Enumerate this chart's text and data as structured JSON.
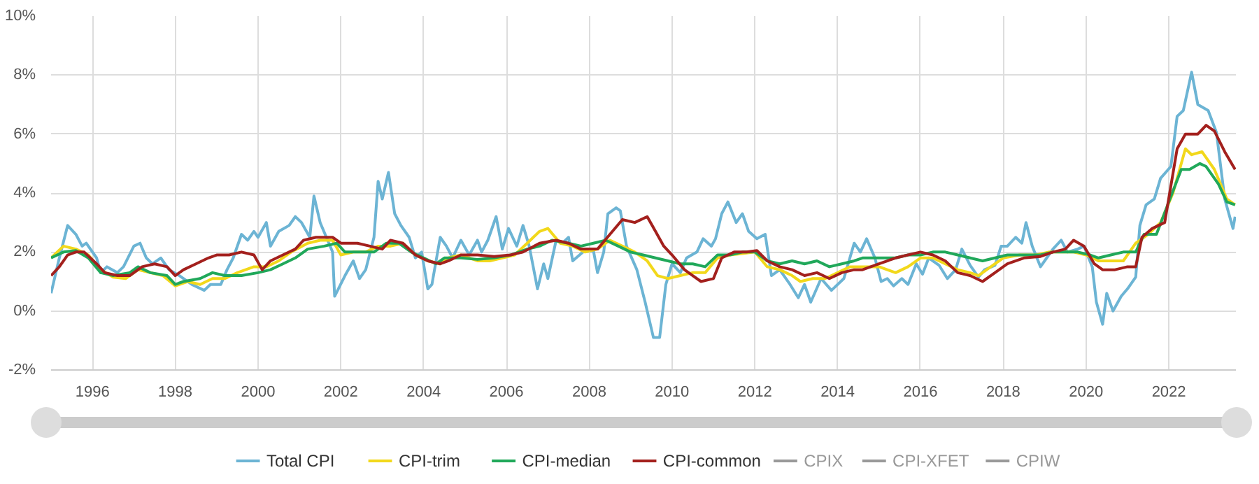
{
  "chart_data": {
    "type": "line",
    "xlim": [
      1995.0,
      2023.62
    ],
    "ylim": [
      -2,
      10
    ],
    "xticks": [
      1996,
      1998,
      2000,
      2002,
      2004,
      2006,
      2008,
      2010,
      2012,
      2014,
      2016,
      2018,
      2020,
      2022
    ],
    "yticks": [
      {
        "value": -2,
        "label": "-2%"
      },
      {
        "value": 0,
        "label": "0%"
      },
      {
        "value": 2,
        "label": "2%"
      },
      {
        "value": 4,
        "label": "4%"
      },
      {
        "value": 6,
        "label": "6%"
      },
      {
        "value": 8,
        "label": "8%"
      },
      {
        "value": 10,
        "label": "10%"
      }
    ],
    "grid": true,
    "legend": "bottom",
    "marker": "none",
    "line_style": "solid",
    "series": [
      {
        "name": "Total CPI",
        "color": "#6cb4d4",
        "x": [
          1995.0,
          1995.2,
          1995.4,
          1995.6,
          1995.75,
          1995.85,
          1996.1,
          1996.2,
          1996.35,
          1996.6,
          1996.75,
          1997.0,
          1997.15,
          1997.3,
          1997.45,
          1997.65,
          1997.85,
          1998.1,
          1998.4,
          1998.7,
          1998.85,
          1999.1,
          1999.25,
          1999.4,
          1999.6,
          1999.75,
          1999.9,
          2000.0,
          2000.2,
          2000.3,
          2000.5,
          2000.75,
          2000.9,
          2001.05,
          2001.25,
          2001.35,
          2001.5,
          2001.65,
          2001.8,
          2001.85,
          2002.1,
          2002.3,
          2002.45,
          2002.6,
          2002.8,
          2002.9,
          2003.0,
          2003.15,
          2003.3,
          2003.45,
          2003.65,
          2003.8,
          2003.95,
          2004.1,
          2004.2,
          2004.4,
          2004.55,
          2004.7,
          2004.9,
          2005.1,
          2005.3,
          2005.4,
          2005.55,
          2005.75,
          2005.9,
          2006.05,
          2006.25,
          2006.4,
          2006.55,
          2006.75,
          2006.9,
          2007.0,
          2007.2,
          2007.35,
          2007.5,
          2007.6,
          2007.85,
          2008.1,
          2008.2,
          2008.35,
          2008.45,
          2008.65,
          2008.75,
          2008.9,
          2009.15,
          2009.35,
          2009.55,
          2009.7,
          2009.85,
          2010.0,
          2010.2,
          2010.35,
          2010.6,
          2010.75,
          2010.95,
          2011.05,
          2011.2,
          2011.35,
          2011.55,
          2011.7,
          2011.85,
          2012.05,
          2012.25,
          2012.4,
          2012.6,
          2012.85,
          2013.05,
          2013.2,
          2013.35,
          2013.6,
          2013.85,
          2014.15,
          2014.4,
          2014.55,
          2014.7,
          2014.9,
          2015.05,
          2015.2,
          2015.35,
          2015.55,
          2015.7,
          2015.9,
          2016.05,
          2016.2,
          2016.45,
          2016.65,
          2016.85,
          2017.0,
          2017.2,
          2017.4,
          2017.55,
          2017.8,
          2017.95,
          2018.1,
          2018.3,
          2018.45,
          2018.55,
          2018.7,
          2018.9,
          2019.05,
          2019.2,
          2019.4,
          2019.55,
          2019.8,
          2019.95,
          2020.15,
          2020.25,
          2020.4,
          2020.5,
          2020.65,
          2020.85,
          2021.0,
          2021.2,
          2021.3,
          2021.45,
          2021.65,
          2021.8,
          2022.05,
          2022.2,
          2022.35,
          2022.55,
          2022.7,
          2022.95,
          2023.15,
          2023.35,
          2023.55,
          2023.6
        ],
        "values": [
          0.6,
          1.8,
          2.9,
          2.6,
          2.2,
          2.3,
          1.8,
          1.3,
          1.5,
          1.3,
          1.5,
          2.2,
          2.3,
          1.8,
          1.6,
          1.8,
          1.4,
          1.2,
          0.9,
          0.7,
          0.9,
          0.9,
          1.4,
          1.8,
          2.6,
          2.4,
          2.7,
          2.5,
          3.0,
          2.2,
          2.7,
          2.9,
          3.2,
          3.0,
          2.5,
          3.9,
          3.0,
          2.5,
          2.0,
          0.5,
          1.2,
          1.7,
          1.1,
          1.4,
          2.5,
          4.4,
          3.8,
          4.7,
          3.3,
          2.9,
          2.5,
          1.8,
          2.0,
          0.75,
          0.9,
          2.5,
          2.2,
          1.8,
          2.4,
          1.9,
          2.4,
          2.0,
          2.4,
          3.2,
          2.1,
          2.8,
          2.2,
          2.9,
          2.2,
          0.75,
          1.6,
          1.1,
          2.4,
          2.3,
          2.5,
          1.7,
          2.0,
          2.05,
          1.3,
          2.0,
          3.3,
          3.5,
          3.4,
          2.2,
          1.4,
          0.3,
          -0.9,
          -0.9,
          0.9,
          1.6,
          1.3,
          1.8,
          2.0,
          2.45,
          2.2,
          2.45,
          3.3,
          3.7,
          3.0,
          3.3,
          2.7,
          2.45,
          2.6,
          1.2,
          1.4,
          0.9,
          0.45,
          0.9,
          0.3,
          1.1,
          0.7,
          1.1,
          2.3,
          2.0,
          2.45,
          1.8,
          1.0,
          1.1,
          0.85,
          1.1,
          0.9,
          1.6,
          1.25,
          1.8,
          1.55,
          1.1,
          1.4,
          2.1,
          1.55,
          1.15,
          1.4,
          1.55,
          2.2,
          2.2,
          2.5,
          2.3,
          3.0,
          2.2,
          1.5,
          1.8,
          2.1,
          2.4,
          2.0,
          2.1,
          2.2,
          1.5,
          0.3,
          -0.45,
          0.6,
          0.0,
          0.5,
          0.75,
          1.15,
          2.9,
          3.6,
          3.8,
          4.5,
          4.9,
          6.6,
          6.8,
          8.1,
          7.0,
          6.8,
          6.05,
          3.8,
          2.8,
          3.2
        ]
      },
      {
        "name": "CPI-trim",
        "color": "#f2d81b",
        "x": [
          1995.0,
          1995.3,
          1995.6,
          1995.9,
          1996.2,
          1996.5,
          1996.8,
          1997.1,
          1997.4,
          1997.7,
          1998.0,
          1998.3,
          1998.6,
          1998.9,
          1999.2,
          1999.5,
          1999.9,
          2000.2,
          2000.5,
          2000.8,
          2001.2,
          2001.5,
          2001.8,
          2002.0,
          2002.3,
          2002.6,
          2002.9,
          2003.2,
          2003.5,
          2003.8,
          2004.1,
          2004.4,
          2004.6,
          2004.9,
          2005.3,
          2005.6,
          2005.9,
          2006.2,
          2006.5,
          2006.8,
          2007.0,
          2007.3,
          2007.6,
          2007.9,
          2008.2,
          2008.5,
          2008.8,
          2009.1,
          2009.4,
          2009.65,
          2009.9,
          2010.2,
          2010.5,
          2010.8,
          2011.1,
          2011.4,
          2011.7,
          2012.0,
          2012.3,
          2012.6,
          2012.9,
          2013.1,
          2013.4,
          2013.7,
          2014.0,
          2014.3,
          2014.6,
          2015.0,
          2015.4,
          2015.7,
          2016.0,
          2016.3,
          2016.6,
          2016.9,
          2017.2,
          2017.4,
          2017.7,
          2018.0,
          2018.4,
          2018.8,
          2019.1,
          2019.4,
          2019.7,
          2020.0,
          2020.3,
          2020.6,
          2020.9,
          2021.2,
          2021.5,
          2021.8,
          2022.1,
          2022.4,
          2022.55,
          2022.8,
          2023.1,
          2023.4,
          2023.6
        ],
        "values": [
          1.8,
          2.2,
          2.1,
          1.9,
          1.4,
          1.15,
          1.1,
          1.4,
          1.3,
          1.2,
          0.85,
          1.0,
          0.9,
          1.1,
          1.1,
          1.3,
          1.5,
          1.5,
          1.7,
          2.0,
          2.3,
          2.4,
          2.4,
          1.9,
          2.0,
          2.0,
          2.2,
          2.2,
          2.3,
          1.9,
          1.7,
          1.6,
          1.8,
          1.9,
          1.7,
          1.7,
          1.8,
          1.9,
          2.3,
          2.7,
          2.8,
          2.3,
          2.2,
          2.0,
          2.1,
          2.4,
          2.2,
          2.0,
          1.7,
          1.2,
          1.1,
          1.2,
          1.3,
          1.3,
          1.8,
          1.9,
          1.95,
          2.0,
          1.5,
          1.4,
          1.2,
          1.0,
          1.1,
          1.1,
          1.3,
          1.5,
          1.5,
          1.5,
          1.3,
          1.5,
          1.8,
          1.8,
          1.6,
          1.4,
          1.3,
          1.2,
          1.5,
          1.8,
          1.9,
          1.9,
          2.0,
          2.0,
          2.0,
          1.9,
          1.7,
          1.7,
          1.7,
          2.3,
          2.6,
          3.0,
          4.0,
          5.5,
          5.3,
          5.4,
          4.8,
          3.8,
          3.6
        ]
      },
      {
        "name": "CPI-median",
        "color": "#20a85a",
        "x": [
          1995.0,
          1995.3,
          1995.6,
          1995.9,
          1996.2,
          1996.5,
          1996.9,
          1997.1,
          1997.4,
          1997.8,
          1998.0,
          1998.2,
          1998.6,
          1998.9,
          1999.2,
          1999.6,
          2000.0,
          2000.3,
          2000.6,
          2000.9,
          2001.2,
          2001.6,
          2001.9,
          2002.1,
          2002.4,
          2002.8,
          2003.1,
          2003.4,
          2003.7,
          2004.0,
          2004.3,
          2004.5,
          2004.9,
          2005.3,
          2005.7,
          2006.1,
          2006.5,
          2006.8,
          2007.1,
          2007.5,
          2007.8,
          2008.1,
          2008.4,
          2008.7,
          2009.0,
          2009.3,
          2009.6,
          2009.9,
          2010.2,
          2010.5,
          2010.8,
          2011.1,
          2011.4,
          2011.7,
          2012.0,
          2012.3,
          2012.6,
          2012.9,
          2013.2,
          2013.5,
          2013.8,
          2014.1,
          2014.4,
          2014.6,
          2015.0,
          2015.4,
          2015.7,
          2016.0,
          2016.3,
          2016.6,
          2016.9,
          2017.2,
          2017.5,
          2017.8,
          2018.1,
          2018.5,
          2018.9,
          2019.2,
          2019.5,
          2019.8,
          2020.1,
          2020.3,
          2020.6,
          2020.9,
          2021.2,
          2021.4,
          2021.7,
          2022.0,
          2022.3,
          2022.5,
          2022.75,
          2022.9,
          2023.2,
          2023.4,
          2023.6
        ],
        "values": [
          1.8,
          2.0,
          2.05,
          1.8,
          1.3,
          1.2,
          1.3,
          1.5,
          1.3,
          1.2,
          0.9,
          1.0,
          1.1,
          1.3,
          1.2,
          1.2,
          1.3,
          1.4,
          1.6,
          1.8,
          2.1,
          2.2,
          2.3,
          2.0,
          2.0,
          2.0,
          2.3,
          2.3,
          2.0,
          1.8,
          1.6,
          1.8,
          1.8,
          1.75,
          1.8,
          1.9,
          2.1,
          2.2,
          2.4,
          2.3,
          2.2,
          2.3,
          2.4,
          2.2,
          2.0,
          1.9,
          1.8,
          1.7,
          1.6,
          1.6,
          1.5,
          1.9,
          1.9,
          2.0,
          2.0,
          1.7,
          1.6,
          1.7,
          1.6,
          1.7,
          1.5,
          1.6,
          1.7,
          1.8,
          1.8,
          1.8,
          1.9,
          1.9,
          2.0,
          2.0,
          1.9,
          1.8,
          1.7,
          1.8,
          1.9,
          1.9,
          1.9,
          2.0,
          2.0,
          2.0,
          1.9,
          1.8,
          1.9,
          2.0,
          2.0,
          2.6,
          2.6,
          3.7,
          4.8,
          4.8,
          5.0,
          4.9,
          4.3,
          3.7,
          3.6
        ]
      },
      {
        "name": "CPI-common",
        "color": "#a3201d",
        "x": [
          1995.0,
          1995.2,
          1995.4,
          1995.6,
          1995.8,
          1996.1,
          1996.3,
          1996.6,
          1996.9,
          1997.2,
          1997.5,
          1997.8,
          1998.0,
          1998.2,
          1998.5,
          1998.8,
          1999.0,
          1999.3,
          1999.6,
          1999.9,
          2000.1,
          2000.3,
          2000.6,
          2000.9,
          2001.1,
          2001.4,
          2001.8,
          2002.0,
          2002.4,
          2002.7,
          2003.0,
          2003.2,
          2003.5,
          2003.8,
          2004.1,
          2004.4,
          2004.6,
          2004.9,
          2005.3,
          2005.7,
          2006.1,
          2006.4,
          2006.8,
          2007.2,
          2007.5,
          2007.8,
          2008.2,
          2008.5,
          2008.8,
          2009.1,
          2009.4,
          2009.6,
          2009.8,
          2010.0,
          2010.3,
          2010.5,
          2010.7,
          2011.0,
          2011.2,
          2011.5,
          2011.8,
          2012.05,
          2012.3,
          2012.6,
          2012.9,
          2013.2,
          2013.5,
          2013.8,
          2014.1,
          2014.4,
          2014.6,
          2015.0,
          2015.4,
          2015.7,
          2016.0,
          2016.3,
          2016.6,
          2016.9,
          2017.2,
          2017.5,
          2017.8,
          2018.1,
          2018.5,
          2018.9,
          2019.2,
          2019.5,
          2019.7,
          2019.95,
          2020.2,
          2020.4,
          2020.7,
          2021.0,
          2021.2,
          2021.35,
          2021.6,
          2021.9,
          2022.2,
          2022.4,
          2022.7,
          2022.9,
          2023.1,
          2023.35,
          2023.6
        ],
        "values": [
          1.2,
          1.5,
          1.9,
          2.0,
          2.0,
          1.6,
          1.3,
          1.2,
          1.2,
          1.5,
          1.6,
          1.5,
          1.2,
          1.4,
          1.6,
          1.8,
          1.9,
          1.9,
          2.0,
          1.9,
          1.4,
          1.7,
          1.9,
          2.1,
          2.4,
          2.5,
          2.5,
          2.3,
          2.3,
          2.2,
          2.1,
          2.4,
          2.3,
          1.9,
          1.7,
          1.6,
          1.7,
          1.9,
          1.9,
          1.85,
          1.9,
          2.0,
          2.3,
          2.4,
          2.3,
          2.1,
          2.1,
          2.6,
          3.1,
          3.0,
          3.2,
          2.7,
          2.2,
          1.9,
          1.4,
          1.2,
          1.0,
          1.1,
          1.8,
          2.0,
          2.0,
          2.05,
          1.7,
          1.5,
          1.4,
          1.2,
          1.3,
          1.1,
          1.3,
          1.4,
          1.4,
          1.6,
          1.8,
          1.9,
          2.0,
          1.9,
          1.7,
          1.3,
          1.2,
          1.0,
          1.3,
          1.6,
          1.8,
          1.85,
          2.0,
          2.1,
          2.4,
          2.2,
          1.6,
          1.4,
          1.4,
          1.5,
          1.5,
          2.5,
          2.8,
          3.0,
          5.5,
          6.0,
          6.0,
          6.3,
          6.1,
          5.4,
          4.8
        ]
      },
      {
        "name": "CPIX",
        "color": "#999999"
      },
      {
        "name": "CPI-XFET",
        "color": "#999999"
      },
      {
        "name": "CPIW",
        "color": "#999999"
      }
    ]
  }
}
